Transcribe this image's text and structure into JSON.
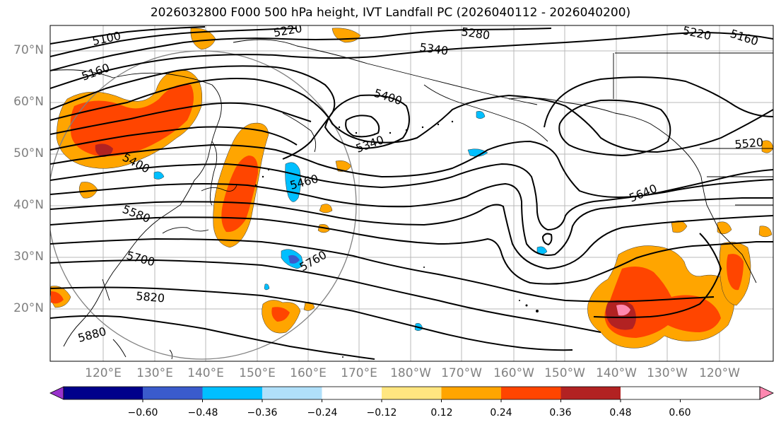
{
  "title": "2026032800 F000 500 hPa height, IVT Landfall PC (2026040112 - 2026040200)",
  "lat_labels": [
    "70°N",
    "60°N",
    "50°N",
    "40°N",
    "30°N",
    "20°N"
  ],
  "lon_labels": [
    "120°E",
    "130°E",
    "140°E",
    "150°E",
    "160°E",
    "170°E",
    "180°W",
    "170°W",
    "160°W",
    "150°W",
    "140°W",
    "130°W",
    "120°W"
  ],
  "height_contours": [
    "5100",
    "5160",
    "5220",
    "5280",
    "5340",
    "5400",
    "5460",
    "5520",
    "5580",
    "5640",
    "5700",
    "5760",
    "5820",
    "5880",
    "5340",
    "5400",
    "5220",
    "5160",
    "5520"
  ],
  "colorbar": {
    "ticks": [
      "−0.60",
      "−0.48",
      "−0.36",
      "−0.24",
      "−0.12",
      "0.12",
      "0.24",
      "0.36",
      "0.48",
      "0.60"
    ],
    "colors": [
      "#9932cc",
      "#00008b",
      "#3a5bcc",
      "#00bfff",
      "#b0e0fa",
      "#ffffff",
      "#ffe680",
      "#ffa500",
      "#ff4500",
      "#b22222",
      "#ff88b0"
    ]
  }
}
